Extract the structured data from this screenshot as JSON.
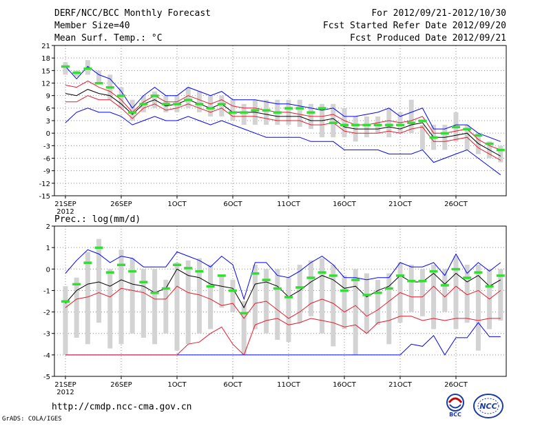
{
  "header": {
    "left": [
      "DERF/NCC/BCC Monthly Forecast",
      "Member Size=40",
      "Mean Surf. Temp.: °C"
    ],
    "right": [
      "For 2012/09/21-2012/10/30",
      "Fcst Started Refer Date 2012/09/20",
      "Fcst Produced Date 2012/09/21"
    ]
  },
  "footer": {
    "url": "http://cmdp.ncc-cma.gov.cn",
    "credit": "GrADS: COLA/IGES"
  },
  "logos": {
    "bcc": "BCC",
    "ncc": "NCC"
  },
  "colors": {
    "mean": "#000000",
    "spread": "#e8192c",
    "range": "#0000ff",
    "obs": "#33dd33",
    "bars": "#d3d3d3",
    "grid": "#888888"
  },
  "chart_data": [
    {
      "type": "line",
      "title": "Mean Surf. Temp.: °C",
      "ylim": [
        -15,
        21
      ],
      "yticks": [
        -15,
        -12,
        -9,
        -6,
        -3,
        0,
        3,
        6,
        9,
        12,
        15,
        18,
        21
      ],
      "x_day_count": 40,
      "xtick_days": [
        0,
        5,
        10,
        15,
        20,
        25,
        30,
        35
      ],
      "xtick_labels": [
        "21SEP",
        "26SEP",
        "1OCT",
        "6OCT",
        "11OCT",
        "16OCT",
        "21OCT",
        "26OCT"
      ],
      "x_year_label": "2012",
      "bar_low": [
        14,
        13.5,
        14,
        12,
        8,
        6,
        3,
        5,
        6,
        5,
        5,
        6,
        5,
        4,
        4,
        3,
        2,
        2,
        2,
        2,
        2,
        1.5,
        1,
        -1,
        -1,
        -1,
        -2,
        -1,
        0,
        -1,
        0,
        0,
        -4,
        -4,
        -4,
        -2,
        -4,
        -5,
        -6,
        -7
      ],
      "bar_high": [
        17,
        15,
        17.5,
        15,
        14,
        11,
        8,
        9,
        10,
        9,
        9,
        11,
        10,
        9,
        9,
        8,
        7,
        8,
        8,
        8,
        8,
        8,
        7,
        7,
        7,
        6,
        4,
        4,
        4,
        6,
        5,
        8,
        2,
        2,
        2,
        5,
        2,
        0,
        -2,
        -3
      ],
      "obs": [
        16,
        14.5,
        15.5,
        12,
        11,
        9,
        5,
        7,
        9,
        7,
        7,
        8,
        7,
        6,
        7,
        5,
        5,
        5.5,
        5.5,
        5,
        6,
        6,
        5,
        6,
        2.5,
        2,
        2,
        2,
        2,
        2,
        2,
        2.5,
        3,
        -1,
        0,
        1.5,
        1,
        -0.5,
        -2.5,
        -4
      ],
      "series": [
        {
          "name": "upper",
          "color": "range",
          "values": [
            16,
            13,
            16,
            14,
            13,
            10,
            6,
            9,
            11,
            9,
            9,
            11,
            10,
            9,
            10,
            8,
            8,
            8,
            7.5,
            7,
            7,
            6.5,
            6,
            5.5,
            6,
            4,
            4,
            4.5,
            5,
            6,
            4,
            5,
            6,
            1,
            1,
            2,
            2,
            0,
            -1,
            -2
          ]
        },
        {
          "name": "upper spread",
          "color": "spread",
          "values": [
            11.5,
            11,
            12.5,
            11,
            10,
            8,
            5,
            7.5,
            9,
            7.5,
            7.5,
            9,
            8,
            7,
            8,
            6.5,
            6,
            6,
            5.5,
            5,
            5,
            4.5,
            4,
            4,
            4.5,
            3,
            2,
            2,
            2.5,
            3,
            2.5,
            3,
            4,
            0,
            0,
            0.5,
            1,
            -1.5,
            -3,
            -4
          ]
        },
        {
          "name": "ensemble mean",
          "color": "mean",
          "values": [
            9.5,
            9,
            10.5,
            9.5,
            9,
            7,
            4.5,
            7,
            8,
            6.5,
            7,
            8,
            7,
            6,
            7,
            5,
            5,
            5,
            4.5,
            4,
            4,
            4,
            3,
            3,
            3.5,
            1.5,
            1,
            1,
            1,
            1.5,
            1,
            2,
            2.5,
            -1,
            -1,
            -0.5,
            0,
            -2.5,
            -4,
            -5.5
          ]
        },
        {
          "name": "lower spread",
          "color": "spread",
          "values": [
            7.5,
            7.5,
            9,
            8,
            8,
            6,
            3.5,
            6,
            7,
            5.5,
            6,
            7,
            6,
            5,
            6,
            4,
            4,
            4,
            3.5,
            3,
            3,
            3,
            2,
            2,
            2.5,
            0.5,
            0,
            0,
            0,
            0.5,
            0,
            1,
            1.5,
            -2,
            -2,
            -1.5,
            -1,
            -3.5,
            -5,
            -6.5
          ]
        },
        {
          "name": "lower",
          "color": "range",
          "values": [
            2.5,
            5,
            6,
            5,
            5,
            4,
            2,
            3,
            4,
            3,
            3,
            4,
            3,
            2,
            3,
            2,
            1,
            0,
            -1,
            -1,
            -1,
            -1,
            -2,
            -2,
            -2,
            -4,
            -4,
            -4,
            -4,
            -5,
            -5,
            -5,
            -4,
            -7,
            -6,
            -5,
            -4,
            -6,
            -8,
            -10
          ]
        }
      ]
    },
    {
      "type": "line",
      "title": "Prec.: log(mm/d)",
      "ylim": [
        -5,
        2
      ],
      "yticks": [
        -5,
        -4,
        -3,
        -2,
        -1,
        0,
        1,
        2
      ],
      "x_day_count": 40,
      "xtick_days": [
        0,
        5,
        10,
        15,
        20,
        25,
        30,
        35
      ],
      "xtick_labels": [
        "21SEP",
        "26SEP",
        "1OCT",
        "6OCT",
        "11OCT",
        "16OCT",
        "21OCT",
        "26OCT"
      ],
      "x_year_label": "2012",
      "bar_low": [
        -4,
        -3.2,
        -3.5,
        -2.5,
        -3.7,
        -3.5,
        -3,
        -3.2,
        -3.5,
        -3,
        -3.8,
        -3.5,
        -3,
        -2.8,
        -1.8,
        -2,
        -4,
        -2.8,
        -3,
        -3.3,
        -3.4,
        -2.5,
        -2.2,
        -3,
        -3.6,
        -2.8,
        -4,
        -3,
        -2.6,
        -3.5,
        -2.5,
        -2,
        -2.2,
        -2.8,
        -2,
        -2.8,
        -2.5,
        -3.8,
        -2.8,
        -2.4
      ],
      "bar_high": [
        -0.8,
        -0.4,
        0.8,
        1.4,
        0,
        0.9,
        0.5,
        0,
        0,
        -0.5,
        0.3,
        0.4,
        0.5,
        0.2,
        -0.3,
        -0.5,
        -1.5,
        0.2,
        0,
        0,
        -0.4,
        0.2,
        0.4,
        0.5,
        0.2,
        -0.3,
        0,
        -0.2,
        -0.5,
        -0.2,
        0.3,
        0.2,
        0,
        0.2,
        0,
        0.6,
        0.2,
        0.2,
        0,
        0
      ],
      "obs": [
        -1.5,
        -0.7,
        0.3,
        1,
        -0.15,
        0.2,
        -0.1,
        -0.6,
        -1.1,
        -0.9,
        0.2,
        0.05,
        -0.1,
        -0.8,
        -0.3,
        -1,
        -2.05,
        -0.2,
        -0.5,
        -0.9,
        -1.3,
        -0.85,
        -0.4,
        -0.15,
        -0.3,
        -1,
        -0.5,
        -1.2,
        -1.1,
        -0.9,
        -0.3,
        -0.55,
        -0.55,
        -0.1,
        -0.75,
        0,
        -0.4,
        -0.15,
        -0.8,
        -0.3
      ],
      "series": [
        {
          "name": "upper",
          "color": "range",
          "values": [
            -0.2,
            0.4,
            0.9,
            0.7,
            0.3,
            0.6,
            0.5,
            0.1,
            0.1,
            0.1,
            0.8,
            0.6,
            0.4,
            0.1,
            0.6,
            0.2,
            -1.4,
            0.3,
            0.3,
            -0.3,
            -0.4,
            -0.1,
            0.3,
            0.6,
            0.2,
            -0.4,
            -0.4,
            -0.5,
            -0.4,
            -0.4,
            0.3,
            0.1,
            0.1,
            0.3,
            -0.3,
            0.7,
            -0.2,
            0.3,
            -0.1,
            0.3
          ]
        },
        {
          "name": "ensemble mean",
          "color": "mean",
          "values": [
            -1.6,
            -1,
            -0.7,
            -0.6,
            -0.8,
            -0.5,
            -0.7,
            -0.8,
            -1.1,
            -0.9,
            0,
            -0.3,
            -0.4,
            -0.7,
            -0.8,
            -0.9,
            -1.8,
            -0.7,
            -0.6,
            -0.8,
            -1.3,
            -1,
            -0.6,
            -0.3,
            -0.5,
            -0.9,
            -0.8,
            -1.3,
            -1,
            -0.8,
            -0.3,
            -0.6,
            -0.6,
            -0.2,
            -0.7,
            -0.2,
            -0.6,
            -0.3,
            -0.8,
            -0.5
          ]
        },
        {
          "name": "lower spread",
          "color": "spread",
          "values": [
            -1.8,
            -1.4,
            -1.3,
            -1.1,
            -1.3,
            -0.9,
            -1,
            -1.1,
            -1.4,
            -1.4,
            -0.8,
            -1.1,
            -1.2,
            -1.4,
            -1.7,
            -1.6,
            -2.3,
            -1.6,
            -1.5,
            -1.9,
            -2.3,
            -2,
            -1.6,
            -1.4,
            -1.6,
            -2,
            -1.7,
            -2.2,
            -1.9,
            -1.5,
            -1.1,
            -1.3,
            -1.3,
            -0.8,
            -1.3,
            -0.8,
            -1.2,
            -1,
            -1.4,
            -1
          ]
        },
        {
          "name": "lower",
          "color": "range",
          "values": [
            -4,
            -4,
            -4,
            -4,
            -4,
            -4,
            -4,
            -4,
            -4,
            -4,
            -4,
            -4,
            -4,
            -4,
            -4,
            -4,
            -4,
            -4,
            -4,
            -4,
            -4,
            -4,
            -4,
            -4,
            -4,
            -4,
            -4,
            -4,
            -4,
            -4,
            -4,
            -3.5,
            -3.6,
            -3.1,
            -4,
            -3.2,
            -3.2,
            -2.5,
            -3.15,
            -3.15
          ]
        },
        {
          "name": "lower extreme spread",
          "color": "spread",
          "values": [
            -4,
            -4,
            -4,
            -4,
            -4,
            -4,
            -4,
            -4,
            -4,
            -4,
            -4,
            -3.5,
            -3.4,
            -3,
            -2.7,
            -3.5,
            -4,
            -2.6,
            -2.4,
            -2.3,
            -2.6,
            -2.5,
            -2.3,
            -2.4,
            -2.5,
            -2.7,
            -2.6,
            -3,
            -2.5,
            -2.4,
            -2.2,
            -2.2,
            -2.4,
            -2.3,
            -2.4,
            -2.3,
            -2.3,
            -2.4,
            -2.3,
            -2.3
          ]
        }
      ]
    }
  ]
}
